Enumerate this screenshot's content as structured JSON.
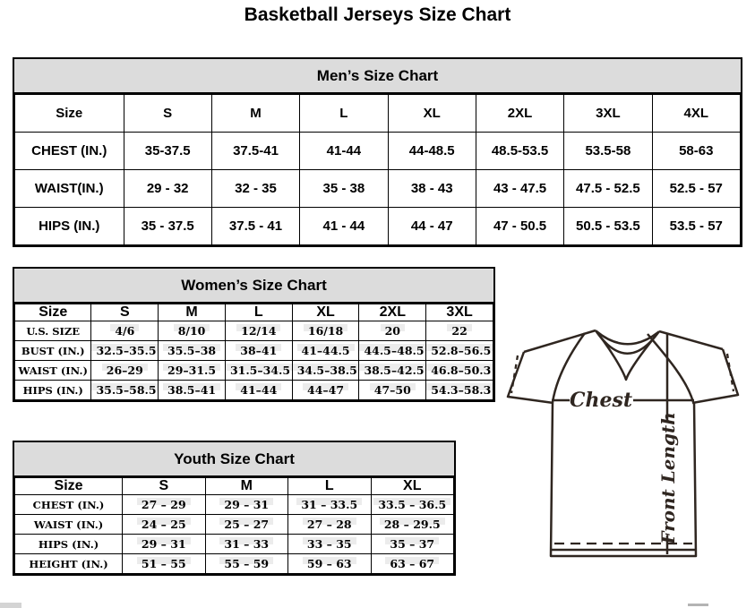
{
  "title": "Basketball Jerseys Size Chart",
  "mens": {
    "title": "Men’s Size Chart",
    "columns": [
      "Size",
      "S",
      "M",
      "L",
      "XL",
      "2XL",
      "3XL",
      "4XL"
    ],
    "rows": [
      {
        "label": "CHEST (IN.)",
        "values": [
          "35-37.5",
          "37.5-41",
          "41-44",
          "44-48.5",
          "48.5-53.5",
          "53.5-58",
          "58-63"
        ]
      },
      {
        "label": "WAIST(IN.)",
        "values": [
          "29 - 32",
          "32 - 35",
          "35 - 38",
          "38 - 43",
          "43 - 47.5",
          "47.5 - 52.5",
          "52.5 - 57"
        ]
      },
      {
        "label": "HIPS (IN.)",
        "values": [
          "35 - 37.5",
          "37.5 - 41",
          "41 - 44",
          "44 - 47",
          "47 - 50.5",
          "50.5 - 53.5",
          "53.5 - 57"
        ]
      }
    ]
  },
  "womens": {
    "title": "Women’s Size Chart",
    "columns": [
      "Size",
      "S",
      "M",
      "L",
      "XL",
      "2XL",
      "3XL"
    ],
    "rows": [
      {
        "label": "U.S. SIZE",
        "values": [
          "4/6",
          "8/10",
          "12/14",
          "16/18",
          "20",
          "22"
        ]
      },
      {
        "label": "BUST (IN.)",
        "values": [
          "32.5–35.5",
          "35.5–38",
          "38–41",
          "41–44.5",
          "44.5–48.5",
          "52.8–56.5"
        ]
      },
      {
        "label": "WAIST (IN.)",
        "values": [
          "26–29",
          "29–31.5",
          "31.5–34.5",
          "34.5–38.5",
          "38.5–42.5",
          "46.8–50.3"
        ]
      },
      {
        "label": "HIPS (IN.)",
        "values": [
          "35.5–58.5",
          "38.5–41",
          "41–44",
          "44–47",
          "47–50",
          "54.3–58.3"
        ]
      }
    ]
  },
  "youth": {
    "title": "Youth Size Chart",
    "columns": [
      "Size",
      "S",
      "M",
      "L",
      "XL"
    ],
    "rows": [
      {
        "label": "CHEST (IN.)",
        "values": [
          "27 – 29",
          "29 – 31",
          "31 – 33.5",
          "33.5 – 36.5"
        ]
      },
      {
        "label": "WAIST (IN.)",
        "values": [
          "24 – 25",
          "25 – 27",
          "27 – 28",
          "28 – 29.5"
        ]
      },
      {
        "label": "HIPS (IN.)",
        "values": [
          "29 – 31",
          "31 – 33",
          "33 – 35",
          "35 – 37"
        ]
      },
      {
        "label": "HEIGHT (IN.)",
        "values": [
          "51 – 55",
          "55 – 59",
          "59 – 63",
          "63 – 67"
        ]
      }
    ]
  },
  "diagram": {
    "chest_label": "Chest",
    "front_length_label": "Front Length"
  },
  "colors": {
    "header_bg": "#dcdcdc",
    "table_border": "#000000",
    "jersey_stroke": "#2f2620"
  }
}
